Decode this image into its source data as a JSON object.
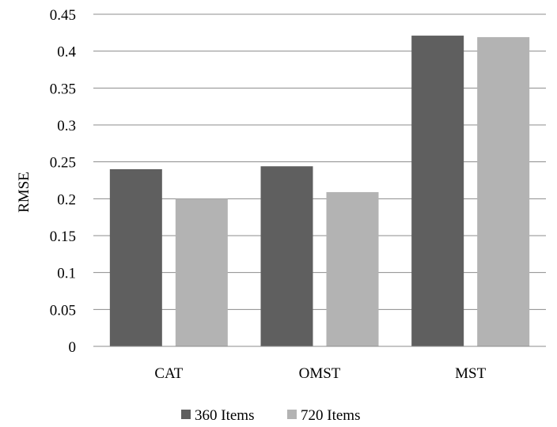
{
  "chart_data": {
    "type": "bar",
    "title": "",
    "xlabel": "",
    "ylabel": "RMSE",
    "categories": [
      "CAT",
      "OMST",
      "MST"
    ],
    "series": [
      {
        "name": "360 Items",
        "color": "#5f5f5f",
        "values": [
          0.24,
          0.244,
          0.421
        ]
      },
      {
        "name": "720 Items",
        "color": "#b3b3b3",
        "values": [
          0.2,
          0.209,
          0.419
        ]
      }
    ],
    "ylim": [
      0,
      0.45
    ],
    "yticks": [
      "0",
      "0.05",
      "0.1",
      "0.15",
      "0.2",
      "0.25",
      "0.3",
      "0.35",
      "0.4",
      "0.45"
    ],
    "grid": true,
    "legend_position": "bottom"
  }
}
